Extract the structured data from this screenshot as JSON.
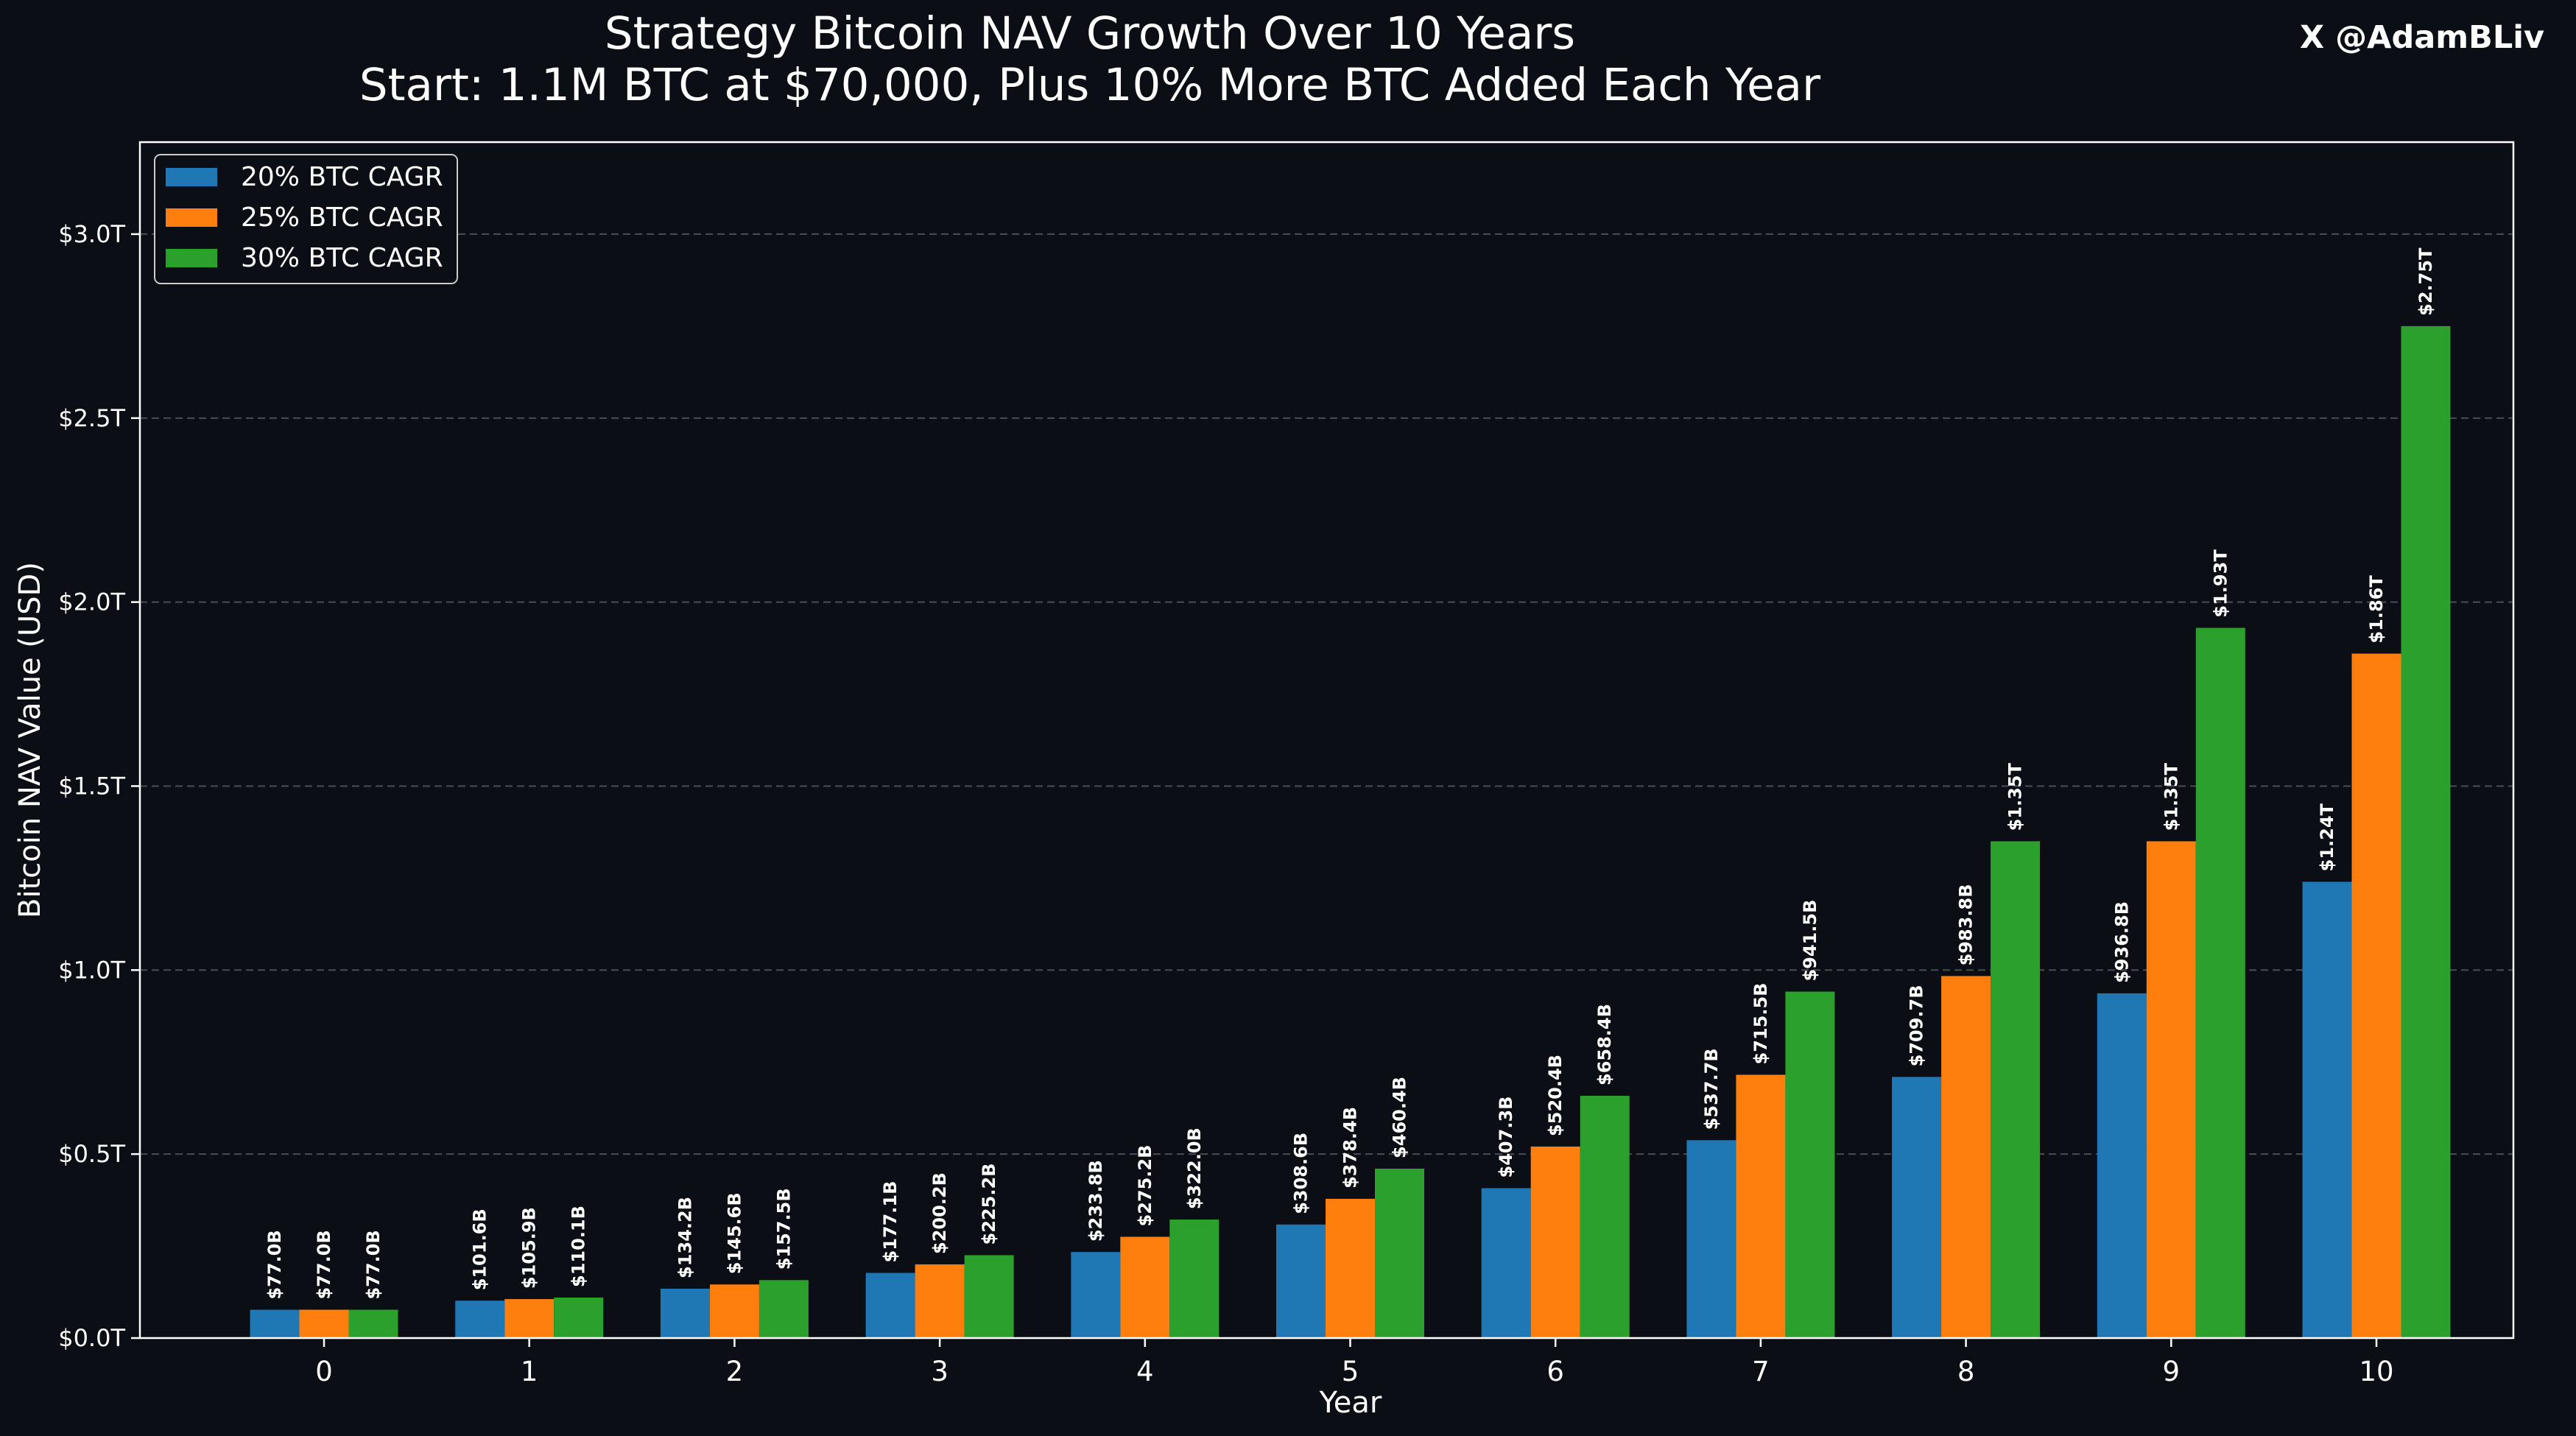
{
  "watermark": "X @AdamBLiv",
  "chart_data": {
    "type": "bar",
    "title": "Strategy Bitcoin NAV Growth Over 10 Years",
    "subtitle": "Start: 1.1M BTC at $70,000, Plus 10% More BTC Added Each Year",
    "xlabel": "Year",
    "ylabel": "Bitcoin NAV Value (USD)",
    "ylim": [
      0,
      3.25
    ],
    "y_unit": "trillion USD",
    "yticks": [
      0,
      0.5,
      1.0,
      1.5,
      2.0,
      2.5,
      3.0
    ],
    "ytick_labels": [
      "$0.0T",
      "$0.5T",
      "$1.0T",
      "$1.5T",
      "$2.0T",
      "$2.5T",
      "$3.0T"
    ],
    "categories": [
      "0",
      "1",
      "2",
      "3",
      "4",
      "5",
      "6",
      "7",
      "8",
      "9",
      "10"
    ],
    "grid": true,
    "legend_position": "top-left",
    "series": [
      {
        "name": "20% BTC CAGR",
        "color": "#1f77b4",
        "values": [
          0.077,
          0.1016,
          0.1342,
          0.1771,
          0.2338,
          0.3086,
          0.4073,
          0.5377,
          0.7097,
          0.9368,
          1.24
        ],
        "labels": [
          "$77.0B",
          "$101.6B",
          "$134.2B",
          "$177.1B",
          "$233.8B",
          "$308.6B",
          "$407.3B",
          "$537.7B",
          "$709.7B",
          "$936.8B",
          "$1.24T"
        ]
      },
      {
        "name": "25% BTC CAGR",
        "color": "#ff7f0e",
        "values": [
          0.077,
          0.1059,
          0.1456,
          0.2002,
          0.2752,
          0.3784,
          0.5204,
          0.7155,
          0.9838,
          1.35,
          1.86
        ],
        "labels": [
          "$77.0B",
          "$105.9B",
          "$145.6B",
          "$200.2B",
          "$275.2B",
          "$378.4B",
          "$520.4B",
          "$715.5B",
          "$983.8B",
          "$1.35T",
          "$1.86T"
        ]
      },
      {
        "name": "30% BTC CAGR",
        "color": "#2ca02c",
        "values": [
          0.077,
          0.1101,
          0.1575,
          0.2252,
          0.322,
          0.4604,
          0.6584,
          0.9415,
          1.35,
          1.93,
          2.75
        ],
        "labels": [
          "$77.0B",
          "$110.1B",
          "$157.5B",
          "$225.2B",
          "$322.0B",
          "$460.4B",
          "$658.4B",
          "$941.5B",
          "$1.35T",
          "$1.93T",
          "$2.75T"
        ]
      }
    ]
  }
}
